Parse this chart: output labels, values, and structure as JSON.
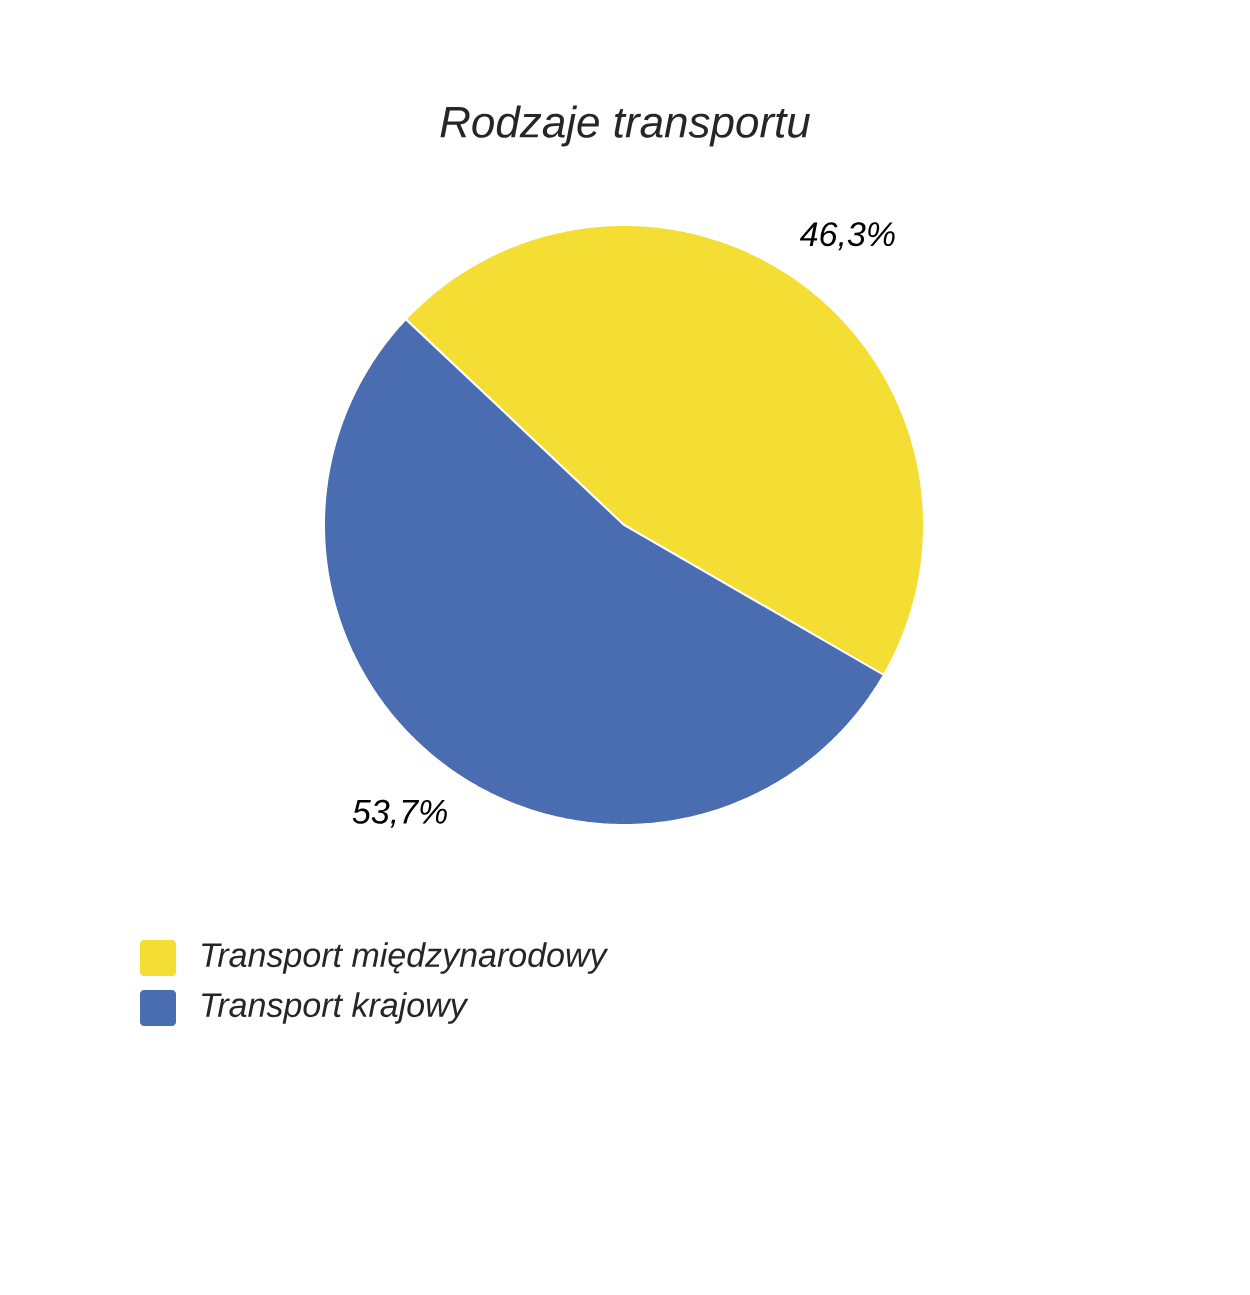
{
  "chart_data": {
    "type": "pie",
    "title": "Rodzaje transportu",
    "categories": [
      "Transport międzynarodowy",
      "Transport krajowy"
    ],
    "values": [
      46.3,
      53.7
    ],
    "colors": [
      "#f4de33",
      "#4a6cb1"
    ],
    "value_labels": [
      "46,3%",
      "53,7%"
    ],
    "legend": "bottom left"
  }
}
